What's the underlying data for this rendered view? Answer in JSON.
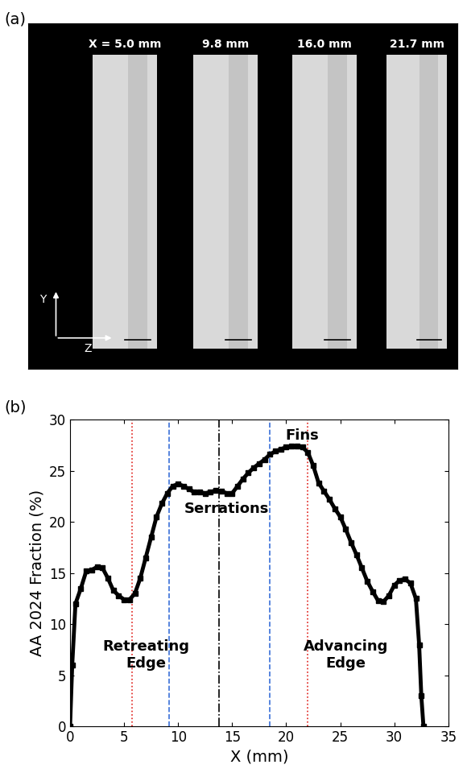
{
  "panel_a": {
    "label": "(a)",
    "slices": [
      "X = 5.0 mm",
      "9.8 mm",
      "16.0 mm",
      "21.7 mm"
    ],
    "axis_y": "Y",
    "axis_z": "Z"
  },
  "chart_data": {
    "type": "line",
    "label": "(b)",
    "x_label": "X (mm)",
    "y_label": "AA 2024 Fraction (%)",
    "x": [
      0,
      0.2,
      0.5,
      1.0,
      1.5,
      2.0,
      2.5,
      3.0,
      3.5,
      4.0,
      4.5,
      5.0,
      5.5,
      6.0,
      6.5,
      7.0,
      7.5,
      8.0,
      8.5,
      9.0,
      9.5,
      10.0,
      10.5,
      11.0,
      11.5,
      12.0,
      12.5,
      13.0,
      13.5,
      14.0,
      14.5,
      15.0,
      15.5,
      16.0,
      16.5,
      17.0,
      17.5,
      18.0,
      18.5,
      19.0,
      19.5,
      20.0,
      20.5,
      21.0,
      21.5,
      22.0,
      22.5,
      23.0,
      23.5,
      24.0,
      24.5,
      25.0,
      25.5,
      26.0,
      26.5,
      27.0,
      27.5,
      28.0,
      28.5,
      29.0,
      29.5,
      30.0,
      30.5,
      31.0,
      31.5,
      32.0,
      32.3,
      32.5,
      32.7
    ],
    "values": [
      0,
      6,
      12,
      13.5,
      15.2,
      15.3,
      15.6,
      15.5,
      14.5,
      13.3,
      12.8,
      12.4,
      12.4,
      13,
      14.5,
      16.5,
      18.5,
      20.5,
      21.8,
      22.8,
      23.5,
      23.7,
      23.5,
      23.2,
      22.9,
      22.9,
      22.8,
      22.9,
      23.1,
      23.0,
      22.8,
      22.8,
      23.5,
      24.2,
      24.8,
      25.3,
      25.7,
      26.1,
      26.6,
      26.9,
      27.1,
      27.3,
      27.4,
      27.4,
      27.3,
      26.8,
      25.5,
      23.8,
      23.0,
      22.2,
      21.3,
      20.5,
      19.3,
      18.0,
      16.8,
      15.5,
      14.2,
      13.2,
      12.3,
      12.2,
      12.8,
      13.8,
      14.3,
      14.4,
      14.0,
      12.5,
      8,
      3,
      0
    ],
    "color": "#000000",
    "marker": "s",
    "xlim": [
      0,
      35
    ],
    "xticks": [
      0,
      5,
      10,
      15,
      20,
      25,
      30,
      35
    ],
    "ylim": [
      0,
      30
    ],
    "yticks": [
      0,
      5,
      10,
      15,
      20,
      25,
      30
    ],
    "vlines": [
      {
        "x": 5.7,
        "color": "#e0201b",
        "line_style": "dotted"
      },
      {
        "x": 22.0,
        "color": "#e0201b",
        "line_style": "dotted"
      },
      {
        "x": 9.2,
        "color": "#3a6fd8",
        "line_style": "dashed"
      },
      {
        "x": 18.5,
        "color": "#3a6fd8",
        "line_style": "dashed"
      },
      {
        "x": 13.8,
        "color": "#000000",
        "line_style": "dashdot"
      }
    ],
    "annotations": [
      {
        "text": "Retreating\nEdge",
        "x": 7.0,
        "y": 7.0
      },
      {
        "text": "Serrations",
        "x": 14.5,
        "y": 21.3
      },
      {
        "text": "Fins",
        "x": 21.5,
        "y": 28.4
      },
      {
        "text": "Advancing\nEdge",
        "x": 25.5,
        "y": 7.0
      }
    ]
  }
}
